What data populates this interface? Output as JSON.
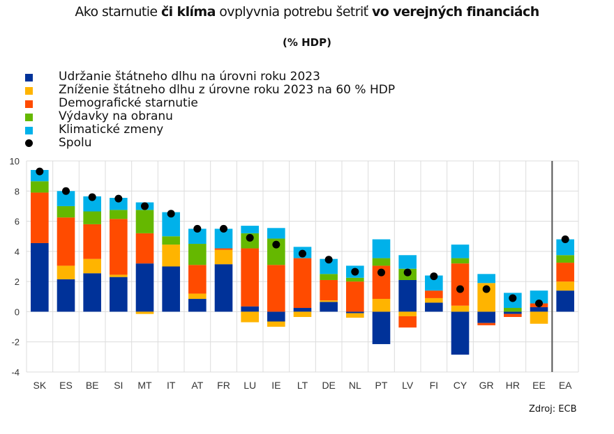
{
  "title": {
    "part1": "Ako starnutie ",
    "part2": "či klíma",
    "part3": " ovplyvnia potrebu šetriť ",
    "part4": "vo verejných financiách"
  },
  "subtitle": "(% HDP)",
  "source": "Zdroj: ECB",
  "chart_data": {
    "type": "bar",
    "stacked": true,
    "title": "Ako starnutie či klíma ovplyvnia potrebu šetriť vo verejných financiách",
    "subtitle": "(% HDP)",
    "xlabel": "",
    "ylabel": "",
    "ylim": [
      -4,
      10
    ],
    "yticks": [
      10,
      8,
      6,
      4,
      2,
      0,
      -2,
      -4
    ],
    "grid": true,
    "legend_position": "top-left",
    "categories": [
      "SK",
      "ES",
      "BE",
      "SI",
      "MT",
      "IT",
      "AT",
      "FR",
      "LU",
      "IE",
      "LT",
      "DE",
      "NL",
      "PT",
      "LV",
      "FI",
      "CY",
      "GR",
      "HR",
      "EE",
      "EA"
    ],
    "separator_before": "EA",
    "series": [
      {
        "name": "Udržanie štátneho dlhu na úrovni roku 2023",
        "color": "#003299",
        "values": [
          4.55,
          2.15,
          2.55,
          2.3,
          3.2,
          3.0,
          0.85,
          3.15,
          0.35,
          -0.65,
          0.25,
          0.65,
          -0.1,
          -2.15,
          2.1,
          0.6,
          -2.85,
          -0.75,
          -0.15,
          0.3,
          1.4
        ]
      },
      {
        "name": "Zníženie štátneho dlhu z úrovne roku 2023 na 60 % HDP",
        "color": "#FFB400",
        "values": [
          0,
          0.9,
          0.95,
          0.15,
          -0.15,
          1.45,
          0.35,
          0.95,
          -0.7,
          -0.35,
          -0.35,
          0.1,
          -0.3,
          0.85,
          -0.3,
          0.3,
          0.4,
          1.9,
          0,
          -0.8,
          0.6
        ]
      },
      {
        "name": "Demografické starnutie",
        "color": "#FF4B00",
        "values": [
          3.35,
          3.2,
          2.3,
          3.7,
          2.0,
          0,
          1.9,
          0.1,
          3.85,
          3.1,
          3.3,
          1.35,
          2.0,
          2.2,
          -0.75,
          0.5,
          2.8,
          -0.15,
          -0.2,
          0.25,
          1.25
        ]
      },
      {
        "name": "Výdavky na obranu",
        "color": "#65B800",
        "values": [
          0.75,
          0.75,
          0.85,
          0.6,
          1.55,
          0.55,
          1.4,
          0,
          1.0,
          1.75,
          0,
          0.4,
          0.25,
          0.5,
          0.75,
          0,
          0.35,
          0,
          0.25,
          0,
          0.5
        ]
      },
      {
        "name": "Klimatické zmeny",
        "color": "#00B1EA",
        "values": [
          0.75,
          1.0,
          1.0,
          0.8,
          0.5,
          1.6,
          1.0,
          1.3,
          0.5,
          0.7,
          0.75,
          1.0,
          0.8,
          1.25,
          0.9,
          1.0,
          0.9,
          0.6,
          1.0,
          0.85,
          1.05
        ]
      },
      {
        "name": "Spolu",
        "type": "scatter",
        "color": "#000000",
        "values": [
          9.3,
          8.0,
          7.6,
          7.5,
          7.0,
          6.5,
          5.5,
          5.5,
          4.9,
          4.45,
          3.85,
          3.45,
          2.65,
          2.6,
          2.6,
          2.35,
          1.5,
          1.5,
          0.9,
          0.55,
          4.8
        ]
      }
    ]
  }
}
